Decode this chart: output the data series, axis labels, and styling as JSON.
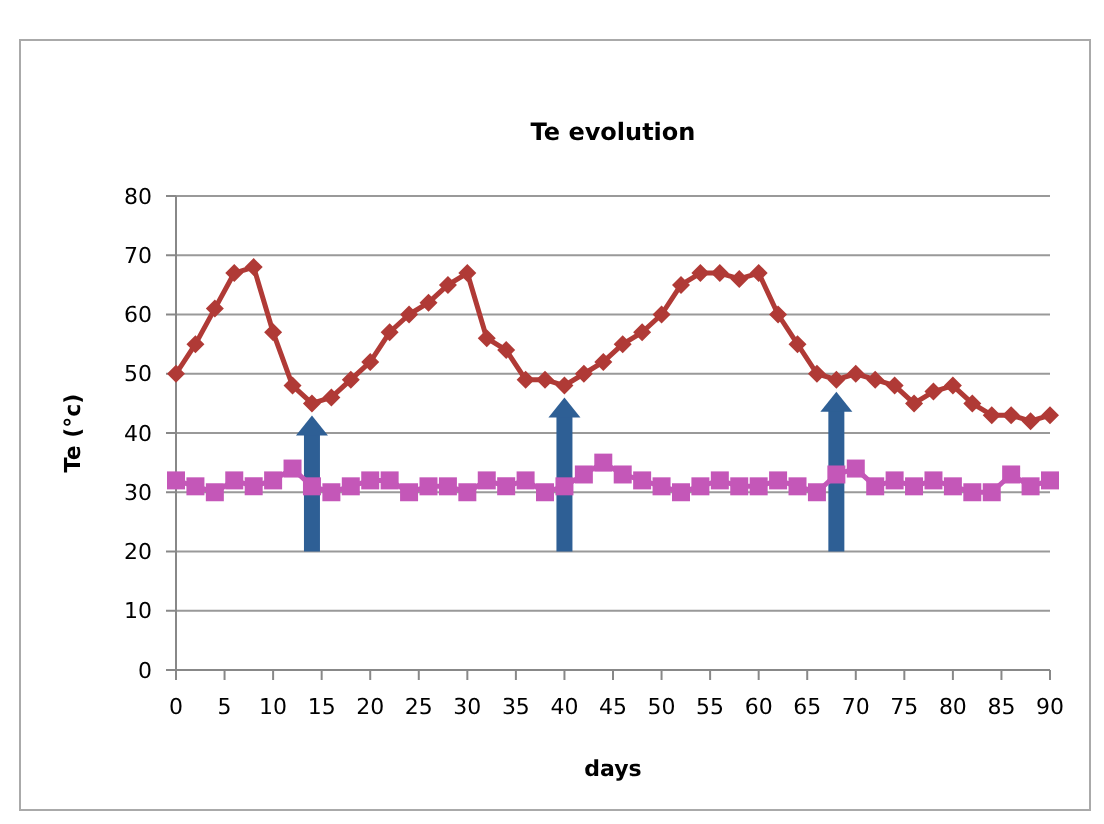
{
  "chart_data": {
    "type": "line",
    "title": "Te evolution",
    "xlabel": "days",
    "ylabel": "Te (°c)",
    "x": [
      0,
      2,
      4,
      6,
      8,
      10,
      12,
      14,
      16,
      18,
      20,
      22,
      24,
      26,
      28,
      30,
      32,
      34,
      36,
      38,
      40,
      42,
      44,
      46,
      48,
      50,
      52,
      54,
      56,
      58,
      60,
      62,
      64,
      66,
      68,
      70,
      72,
      74,
      76,
      78,
      80,
      82,
      84,
      86,
      88,
      90
    ],
    "series": [
      {
        "color": "#b03a36",
        "marker": "diamond",
        "values": [
          50,
          55,
          61,
          67,
          68,
          57,
          48,
          45,
          46,
          49,
          52,
          57,
          60,
          62,
          65,
          67,
          56,
          54,
          49,
          49,
          48,
          50,
          52,
          55,
          57,
          60,
          65,
          67,
          67,
          66,
          67,
          60,
          55,
          50,
          49,
          50,
          49,
          48,
          45,
          47,
          48,
          45,
          43,
          43,
          42,
          43
        ]
      },
      {
        "color": "#c457b8",
        "marker": "square",
        "values": [
          32,
          31,
          30,
          32,
          31,
          32,
          34,
          31,
          30,
          31,
          32,
          32,
          30,
          31,
          31,
          30,
          32,
          31,
          32,
          30,
          31,
          33,
          35,
          33,
          32,
          31,
          30,
          31,
          32,
          31,
          31,
          32,
          31,
          30,
          33,
          34,
          31,
          32,
          31,
          32,
          31,
          30,
          30,
          33,
          31,
          32
        ]
      }
    ],
    "xlim": [
      0,
      90
    ],
    "xticks": [
      0,
      5,
      10,
      15,
      20,
      25,
      30,
      35,
      40,
      45,
      50,
      55,
      60,
      65,
      70,
      75,
      80,
      85,
      90
    ],
    "ylim": [
      0,
      80
    ],
    "yticks": [
      0,
      10,
      20,
      30,
      40,
      50,
      60,
      70,
      80
    ],
    "grid": "y"
  }
}
